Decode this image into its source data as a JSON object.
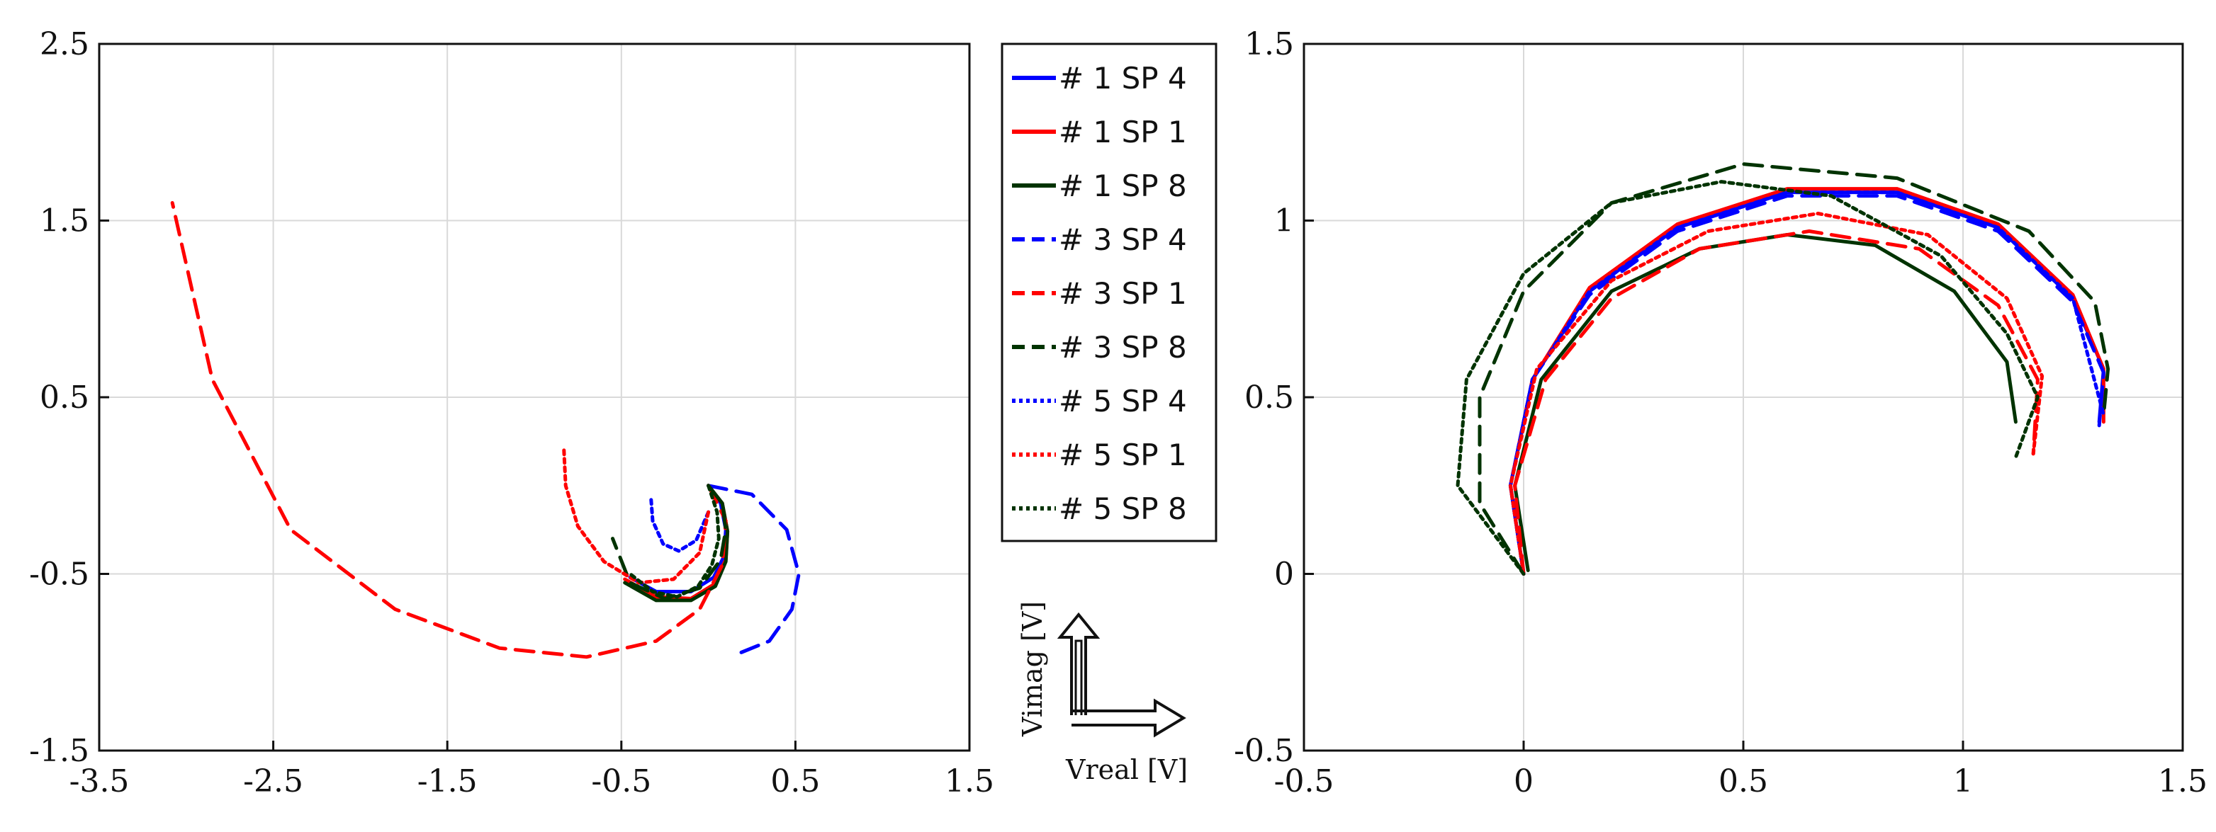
{
  "chart_data": [
    {
      "type": "line",
      "title": "",
      "xlabel": "",
      "ylabel": "",
      "xlim": [
        -3.5,
        1.5
      ],
      "ylim": [
        -1.5,
        2.5
      ],
      "xticks": [
        -3.5,
        -2.5,
        -1.5,
        -0.5,
        0.5,
        1.5
      ],
      "yticks": [
        -1.5,
        -0.5,
        0.5,
        1.5,
        2.5
      ],
      "xtick_labels": [
        "-3.5",
        "-2.5",
        "-1.5",
        "-0.5",
        "0.5",
        "1.5"
      ],
      "ytick_labels": [
        "-1.5",
        "-0.5",
        "0.5",
        "1.5",
        "2.5"
      ],
      "grid": true,
      "series": [
        {
          "name": "# 1  SP 4",
          "color": "#0000ff",
          "dash": "solid",
          "x": [
            0.0,
            0.07,
            0.1,
            0.09,
            0.03,
            -0.1,
            -0.3,
            -0.45
          ],
          "y": [
            0.0,
            -0.1,
            -0.25,
            -0.4,
            -0.52,
            -0.6,
            -0.6,
            -0.52
          ]
        },
        {
          "name": "# 1  SP 1",
          "color": "#ff0000",
          "dash": "solid",
          "x": [
            0.0,
            0.08,
            0.11,
            0.1,
            0.03,
            -0.1,
            -0.3,
            -0.48
          ],
          "y": [
            0.0,
            -0.1,
            -0.26,
            -0.42,
            -0.56,
            -0.64,
            -0.63,
            -0.53
          ]
        },
        {
          "name": "# 1  SP 8",
          "color": "#003300",
          "dash": "solid",
          "x": [
            0.0,
            0.08,
            0.11,
            0.1,
            0.04,
            -0.1,
            -0.3,
            -0.48
          ],
          "y": [
            0.0,
            -0.1,
            -0.26,
            -0.43,
            -0.57,
            -0.65,
            -0.65,
            -0.55
          ]
        },
        {
          "name": "# 3  SP 4",
          "color": "#0000ff",
          "dash": "dashed",
          "x": [
            0.0,
            0.25,
            0.45,
            0.52,
            0.48,
            0.35,
            0.15
          ],
          "y": [
            0.0,
            -0.05,
            -0.25,
            -0.5,
            -0.7,
            -0.88,
            -0.96
          ]
        },
        {
          "name": "# 3  SP 1",
          "color": "#ff0000",
          "dash": "dashed",
          "x": [
            0.0,
            0.1,
            0.08,
            -0.05,
            -0.3,
            -0.7,
            -1.2,
            -1.8,
            -2.4,
            -2.85,
            -3.08
          ],
          "y": [
            0.0,
            -0.2,
            -0.45,
            -0.7,
            -0.88,
            -0.97,
            -0.92,
            -0.7,
            -0.25,
            0.6,
            1.6
          ]
        },
        {
          "name": "# 3  SP 8",
          "color": "#003300",
          "dash": "dashed",
          "x": [
            0.0,
            0.08,
            0.1,
            0.07,
            -0.05,
            -0.25,
            -0.45,
            -0.55
          ],
          "y": [
            0.0,
            -0.1,
            -0.25,
            -0.42,
            -0.58,
            -0.64,
            -0.55,
            -0.3
          ]
        },
        {
          "name": "# 5  SP 4",
          "color": "#0000ff",
          "dash": "dotted",
          "x": [
            0.0,
            -0.07,
            -0.17,
            -0.26,
            -0.32,
            -0.33
          ],
          "y": [
            -0.15,
            -0.31,
            -0.37,
            -0.33,
            -0.2,
            -0.07
          ]
        },
        {
          "name": "# 5  SP 1",
          "color": "#ff0000",
          "dash": "dotted",
          "x": [
            0.0,
            -0.05,
            -0.2,
            -0.4,
            -0.6,
            -0.75,
            -0.82,
            -0.83
          ],
          "y": [
            -0.15,
            -0.38,
            -0.53,
            -0.55,
            -0.43,
            -0.23,
            0.0,
            0.2
          ]
        },
        {
          "name": "# 5  SP 8",
          "color": "#003300",
          "dash": "dotted",
          "x": [
            0.0,
            0.05,
            0.06,
            0.02,
            -0.06,
            -0.18,
            -0.32,
            -0.45
          ],
          "y": [
            0.0,
            -0.15,
            -0.3,
            -0.45,
            -0.57,
            -0.63,
            -0.6,
            -0.5
          ]
        }
      ]
    },
    {
      "type": "line",
      "title": "",
      "xlabel": "",
      "ylabel": "",
      "xlim": [
        -0.5,
        1.5
      ],
      "ylim": [
        -0.5,
        1.5
      ],
      "xticks": [
        -0.5,
        0,
        0.5,
        1,
        1.5
      ],
      "yticks": [
        -0.5,
        0,
        0.5,
        1,
        1.5
      ],
      "xtick_labels": [
        "-0.5",
        "0",
        "0.5",
        "1",
        "1.5"
      ],
      "ytick_labels": [
        "-0.5",
        "0",
        "0.5",
        "1",
        "1.5"
      ],
      "grid": true,
      "series": [
        {
          "name": "# 1  SP 4",
          "color": "#0000ff",
          "dash": "solid",
          "x": [
            0.0,
            -0.03,
            0.02,
            0.15,
            0.35,
            0.6,
            0.85,
            1.08,
            1.25,
            1.32,
            1.31
          ],
          "y": [
            0.0,
            0.25,
            0.55,
            0.8,
            0.98,
            1.08,
            1.08,
            0.98,
            0.78,
            0.58,
            0.43
          ]
        },
        {
          "name": "# 1  SP 1",
          "color": "#ff0000",
          "dash": "solid",
          "x": [
            0.0,
            -0.03,
            0.02,
            0.15,
            0.35,
            0.6,
            0.85,
            1.08,
            1.25,
            1.32,
            1.32
          ],
          "y": [
            0.0,
            0.25,
            0.55,
            0.81,
            0.99,
            1.09,
            1.09,
            0.99,
            0.79,
            0.58,
            0.43
          ]
        },
        {
          "name": "# 1  SP 8",
          "color": "#003300",
          "dash": "solid",
          "x": [
            0.01,
            -0.02,
            0.04,
            0.2,
            0.4,
            0.6,
            0.8,
            0.98,
            1.1,
            1.12
          ],
          "y": [
            0.01,
            0.25,
            0.55,
            0.8,
            0.92,
            0.96,
            0.93,
            0.8,
            0.6,
            0.43
          ]
        },
        {
          "name": "# 3  SP 4",
          "color": "#0000ff",
          "dash": "dashed",
          "x": [
            0.0,
            -0.03,
            0.02,
            0.15,
            0.35,
            0.6,
            0.85,
            1.08,
            1.25,
            1.32,
            1.31
          ],
          "y": [
            0.0,
            0.25,
            0.55,
            0.79,
            0.97,
            1.07,
            1.07,
            0.97,
            0.77,
            0.57,
            0.42
          ]
        },
        {
          "name": "# 3  SP 1",
          "color": "#ff0000",
          "dash": "dashed",
          "x": [
            0.0,
            -0.02,
            0.05,
            0.2,
            0.4,
            0.65,
            0.9,
            1.08,
            1.17,
            1.16
          ],
          "y": [
            0.0,
            0.25,
            0.55,
            0.78,
            0.92,
            0.97,
            0.92,
            0.76,
            0.55,
            0.34
          ]
        },
        {
          "name": "# 3  SP 8",
          "color": "#003300",
          "dash": "dashed",
          "x": [
            0.0,
            -0.1,
            -0.1,
            0.0,
            0.2,
            0.5,
            0.85,
            1.15,
            1.3,
            1.33,
            1.32
          ],
          "y": [
            0.0,
            0.2,
            0.5,
            0.8,
            1.05,
            1.16,
            1.12,
            0.97,
            0.77,
            0.58,
            0.45
          ]
        },
        {
          "name": "# 5  SP 4",
          "color": "#0000ff",
          "dash": "dotted",
          "x": [
            0.0,
            -0.03,
            0.02,
            0.15,
            0.35,
            0.6,
            0.85,
            1.08,
            1.25,
            1.32
          ],
          "y": [
            0.0,
            0.25,
            0.55,
            0.8,
            0.98,
            1.08,
            1.08,
            0.98,
            0.78,
            0.45
          ]
        },
        {
          "name": "# 5  SP 1",
          "color": "#ff0000",
          "dash": "dotted",
          "x": [
            0.0,
            -0.03,
            0.03,
            0.2,
            0.42,
            0.67,
            0.92,
            1.1,
            1.18,
            1.16
          ],
          "y": [
            0.0,
            0.25,
            0.58,
            0.83,
            0.97,
            1.02,
            0.96,
            0.78,
            0.56,
            0.34
          ]
        },
        {
          "name": "# 5  SP 8",
          "color": "#003300",
          "dash": "dotted",
          "x": [
            0.0,
            -0.15,
            -0.13,
            0.0,
            0.2,
            0.45,
            0.7,
            0.95,
            1.1,
            1.17,
            1.12
          ],
          "y": [
            0.0,
            0.25,
            0.55,
            0.85,
            1.05,
            1.11,
            1.07,
            0.9,
            0.68,
            0.5,
            0.33
          ]
        }
      ]
    }
  ],
  "legend": {
    "placement": "between-plots-top",
    "entries": [
      {
        "label": "# 1  SP 4",
        "color": "#0000ff",
        "dash": "solid"
      },
      {
        "label": "# 1  SP 1",
        "color": "#ff0000",
        "dash": "solid"
      },
      {
        "label": "# 1  SP 8",
        "color": "#003300",
        "dash": "solid"
      },
      {
        "label": "# 3  SP 4",
        "color": "#0000ff",
        "dash": "dashed"
      },
      {
        "label": "# 3  SP 1",
        "color": "#ff0000",
        "dash": "dashed"
      },
      {
        "label": "# 3  SP 8",
        "color": "#003300",
        "dash": "dashed"
      },
      {
        "label": "# 5  SP 4",
        "color": "#0000ff",
        "dash": "dotted"
      },
      {
        "label": "# 5  SP 1",
        "color": "#ff0000",
        "dash": "dotted"
      },
      {
        "label": "# 5  SP 8",
        "color": "#003300",
        "dash": "dotted"
      }
    ]
  },
  "axes_indicator": {
    "vertical_label": "Vimag [V]",
    "horizontal_label": "Vreal [V]"
  }
}
